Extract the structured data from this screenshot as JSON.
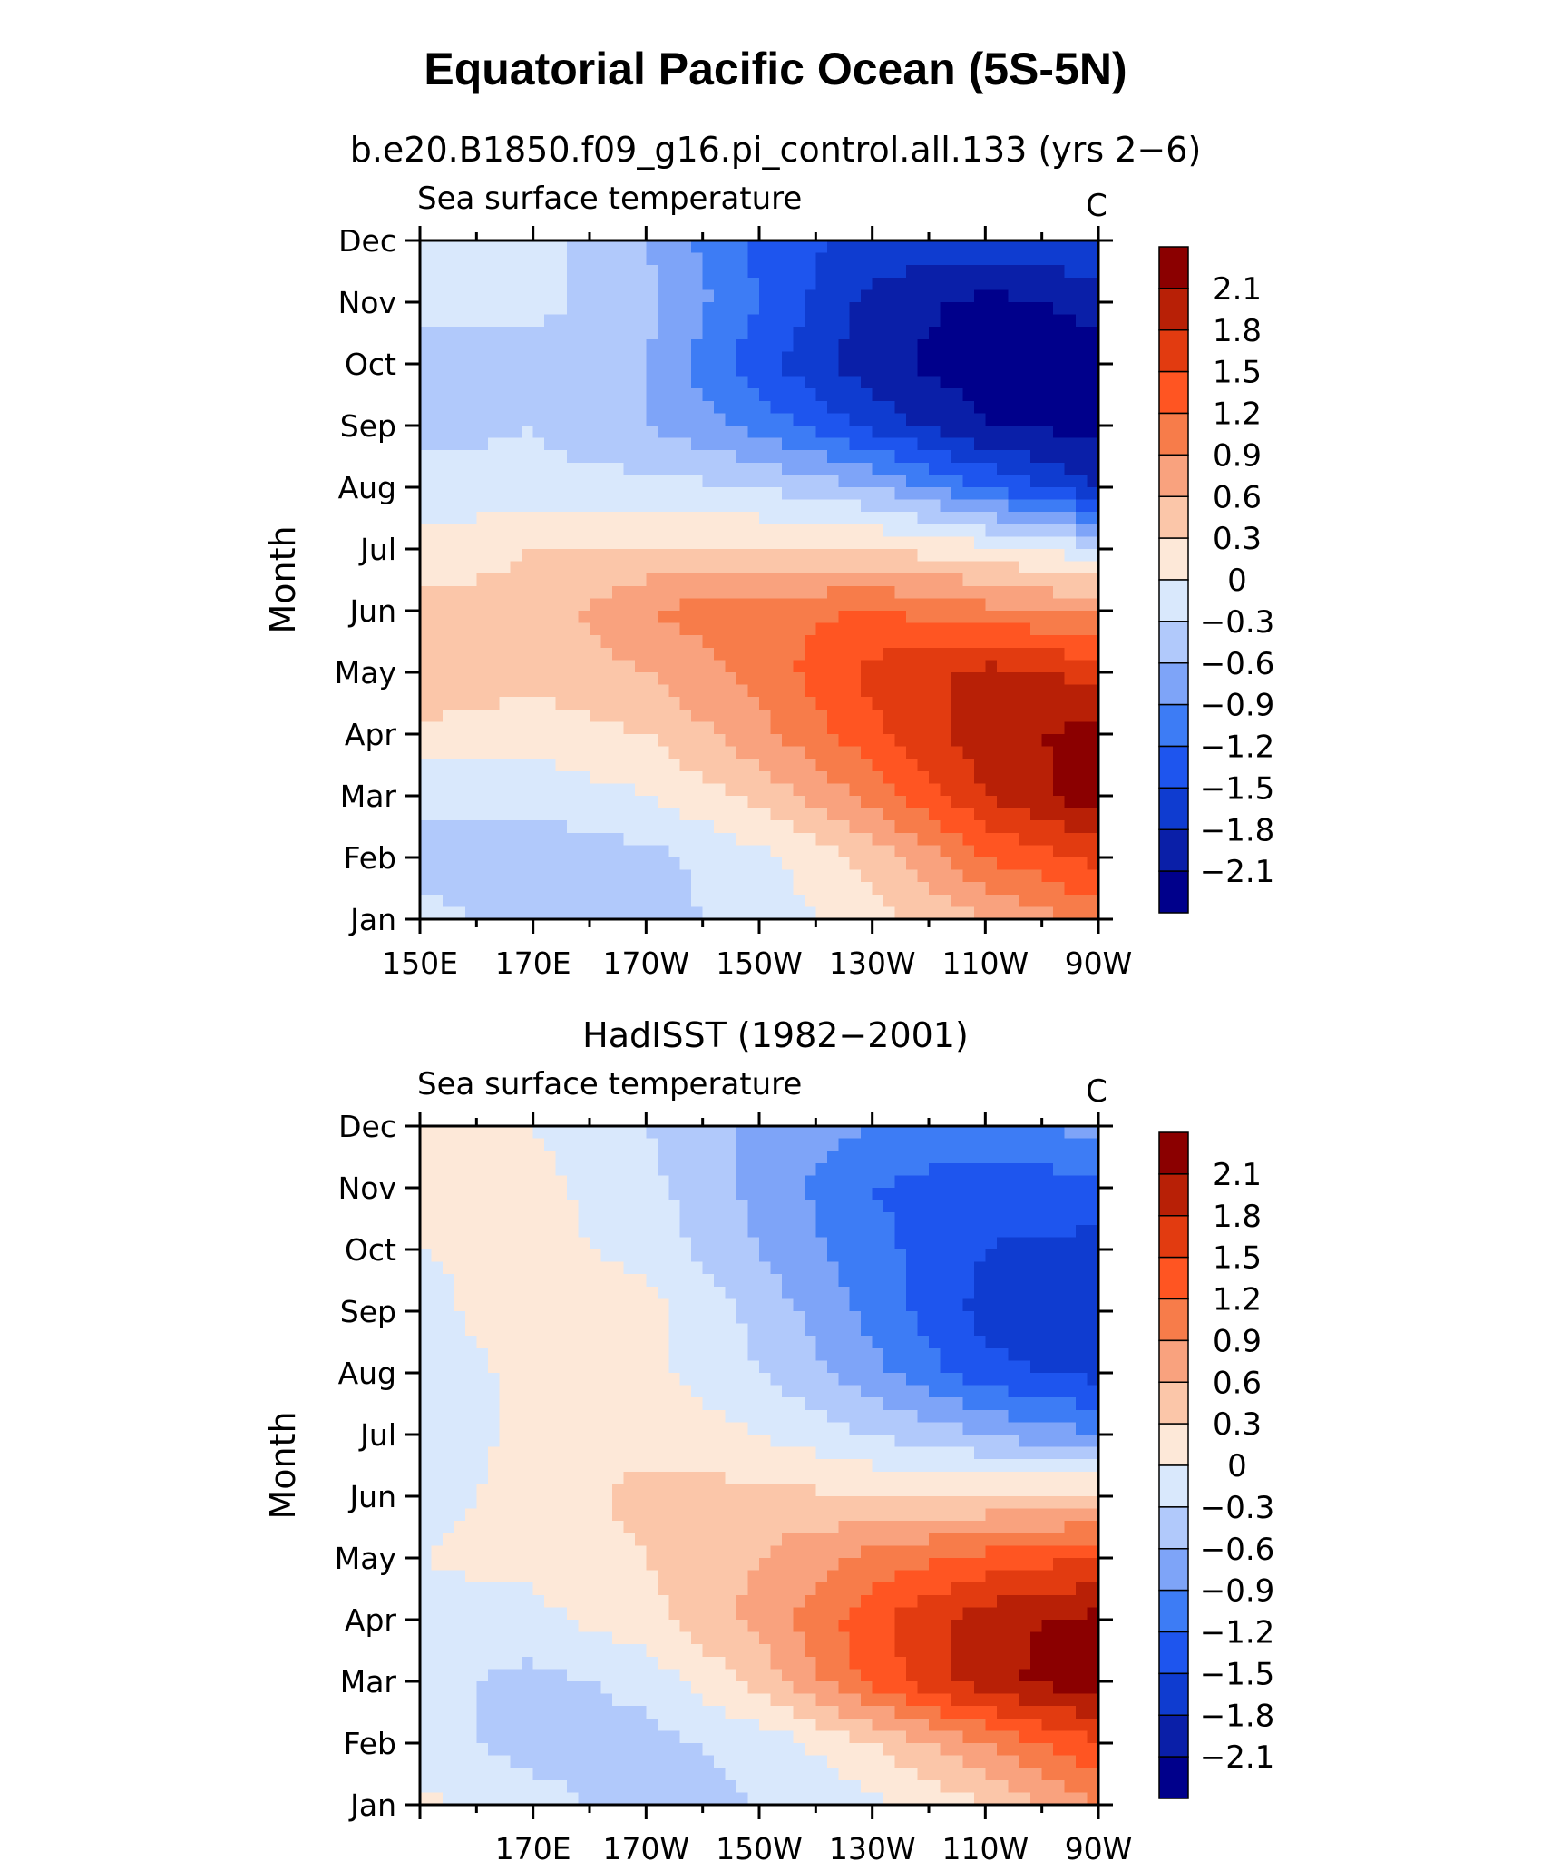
{
  "main_title": "Equatorial Pacific Ocean (5S-5N)",
  "colors": {
    "levels_palette": [
      "#00008b",
      "#0a1fa8",
      "#0f3cd0",
      "#1e55ee",
      "#3d7cf5",
      "#7ea4f8",
      "#b1c9fb",
      "#d9e8fc",
      "#fde8d8",
      "#fbc6a9",
      "#f9a27e",
      "#f77c4a",
      "#ff5522",
      "#e23b10",
      "#b82006",
      "#8b0000"
    ]
  },
  "chart_data": [
    {
      "type": "heatmap",
      "title": "b.e20.B1850.f09_g16.pi_control.all.133 (yrs 2−6)",
      "left_string": "Sea surface temperature",
      "right_string": "C",
      "xlabel": "",
      "ylabel": "Month",
      "x_tick_labels": [
        "150E",
        "170E",
        "170W",
        "150W",
        "130W",
        "110W",
        "90W"
      ],
      "x_tick_longitudes": [
        150,
        170,
        190,
        210,
        230,
        250,
        270
      ],
      "xlim": [
        150,
        270
      ],
      "y_tick_labels": [
        "Jan",
        "Feb",
        "Mar",
        "Apr",
        "May",
        "Jun",
        "Jul",
        "Aug",
        "Sep",
        "Oct",
        "Nov",
        "Dec"
      ],
      "ylim": [
        1,
        12
      ],
      "colorbar_labels": [
        "2.1",
        "1.8",
        "1.5",
        "1.2",
        "0.9",
        "0.6",
        "0.3",
        "0",
        "−0.3",
        "−0.6",
        "−0.9",
        "−1.2",
        "−1.5",
        "−1.8",
        "−2.1"
      ],
      "contour_levels": [
        -2.1,
        -1.8,
        -1.5,
        -1.2,
        -0.9,
        -0.6,
        -0.3,
        0,
        0.3,
        0.6,
        0.9,
        1.2,
        1.5,
        1.8,
        2.1
      ],
      "lon": [
        150,
        170,
        190,
        210,
        230,
        250,
        270
      ],
      "months": [
        1,
        2,
        3,
        4,
        5,
        6,
        7,
        8,
        9,
        10,
        11,
        12
      ],
      "values": [
        [
          -0.2,
          -0.4,
          -0.4,
          -0.2,
          0.2,
          0.6,
          1.0
        ],
        [
          -0.4,
          -0.5,
          -0.4,
          -0.1,
          0.4,
          1.2,
          1.6
        ],
        [
          -0.2,
          -0.2,
          0.0,
          0.4,
          1.0,
          1.8,
          2.3
        ],
        [
          0.2,
          0.1,
          0.3,
          0.8,
          1.4,
          2.0,
          2.2
        ],
        [
          0.6,
          0.4,
          0.6,
          1.0,
          1.6,
          1.9,
          1.7
        ],
        [
          0.4,
          0.4,
          0.9,
          1.1,
          1.2,
          1.0,
          0.8
        ],
        [
          0.1,
          0.3,
          0.3,
          0.3,
          0.3,
          0.1,
          -0.2
        ],
        [
          -0.2,
          -0.2,
          -0.2,
          -0.3,
          -0.6,
          -1.2,
          -1.8
        ],
        [
          -0.4,
          -0.3,
          -0.6,
          -1.0,
          -1.6,
          -2.1,
          -2.2
        ],
        [
          -0.4,
          -0.4,
          -0.6,
          -1.4,
          -2.0,
          -2.3,
          -2.2
        ],
        [
          -0.2,
          -0.2,
          -0.5,
          -1.2,
          -1.9,
          -2.2,
          -2.0
        ],
        [
          0.0,
          -0.2,
          -0.6,
          -1.3,
          -1.6,
          -1.6,
          -1.5
        ]
      ]
    },
    {
      "type": "heatmap",
      "title": "HadISST (1982−2001)",
      "left_string": "Sea surface temperature",
      "right_string": "C",
      "xlabel": "",
      "ylabel": "Month",
      "x_tick_labels": [
        "170E",
        "170W",
        "150W",
        "130W",
        "110W",
        "90W"
      ],
      "x_tick_longitudes": [
        170,
        190,
        210,
        230,
        250,
        270
      ],
      "xlim": [
        150,
        270
      ],
      "y_tick_labels": [
        "Jan",
        "Feb",
        "Mar",
        "Apr",
        "May",
        "Jun",
        "Jul",
        "Aug",
        "Sep",
        "Oct",
        "Nov",
        "Dec"
      ],
      "ylim": [
        1,
        12
      ],
      "colorbar_labels": [
        "2.1",
        "1.8",
        "1.5",
        "1.2",
        "0.9",
        "0.6",
        "0.3",
        "0",
        "−0.3",
        "−0.6",
        "−0.9",
        "−1.2",
        "−1.5",
        "−1.8",
        "−2.1"
      ],
      "contour_levels": [
        -2.1,
        -1.8,
        -1.5,
        -1.2,
        -0.9,
        -0.6,
        -0.3,
        0,
        0.3,
        0.6,
        0.9,
        1.2,
        1.5,
        1.8,
        2.1
      ],
      "lon": [
        150,
        170,
        190,
        210,
        230,
        250,
        270
      ],
      "months": [
        1,
        2,
        3,
        4,
        5,
        6,
        7,
        8,
        9,
        10,
        11,
        12
      ],
      "values": [
        [
          0.1,
          -0.2,
          -0.4,
          -0.3,
          -0.1,
          0.3,
          0.9
        ],
        [
          -0.2,
          -0.4,
          -0.4,
          -0.2,
          0.3,
          0.9,
          1.5
        ],
        [
          -0.2,
          -0.4,
          -0.2,
          0.4,
          1.3,
          2.0,
          2.3
        ],
        [
          -0.1,
          -0.1,
          0.2,
          0.7,
          1.4,
          2.0,
          2.2
        ],
        [
          0.0,
          0.1,
          0.3,
          0.6,
          1.0,
          1.3,
          1.5
        ],
        [
          -0.1,
          0.1,
          0.4,
          0.4,
          0.3,
          0.3,
          0.4
        ],
        [
          -0.2,
          0.1,
          0.2,
          0.0,
          -0.3,
          -0.6,
          -0.9
        ],
        [
          -0.2,
          0.1,
          0.1,
          -0.3,
          -0.8,
          -1.4,
          -1.6
        ],
        [
          -0.1,
          0.2,
          0.1,
          -0.4,
          -1.0,
          -1.6,
          -1.7
        ],
        [
          0.0,
          0.1,
          -0.1,
          -0.6,
          -1.1,
          -1.5,
          -1.6
        ],
        [
          0.1,
          0.1,
          -0.2,
          -0.7,
          -1.2,
          -1.4,
          -1.3
        ],
        [
          0.1,
          0.0,
          -0.3,
          -0.7,
          -0.9,
          -1.0,
          -0.8
        ]
      ]
    }
  ]
}
